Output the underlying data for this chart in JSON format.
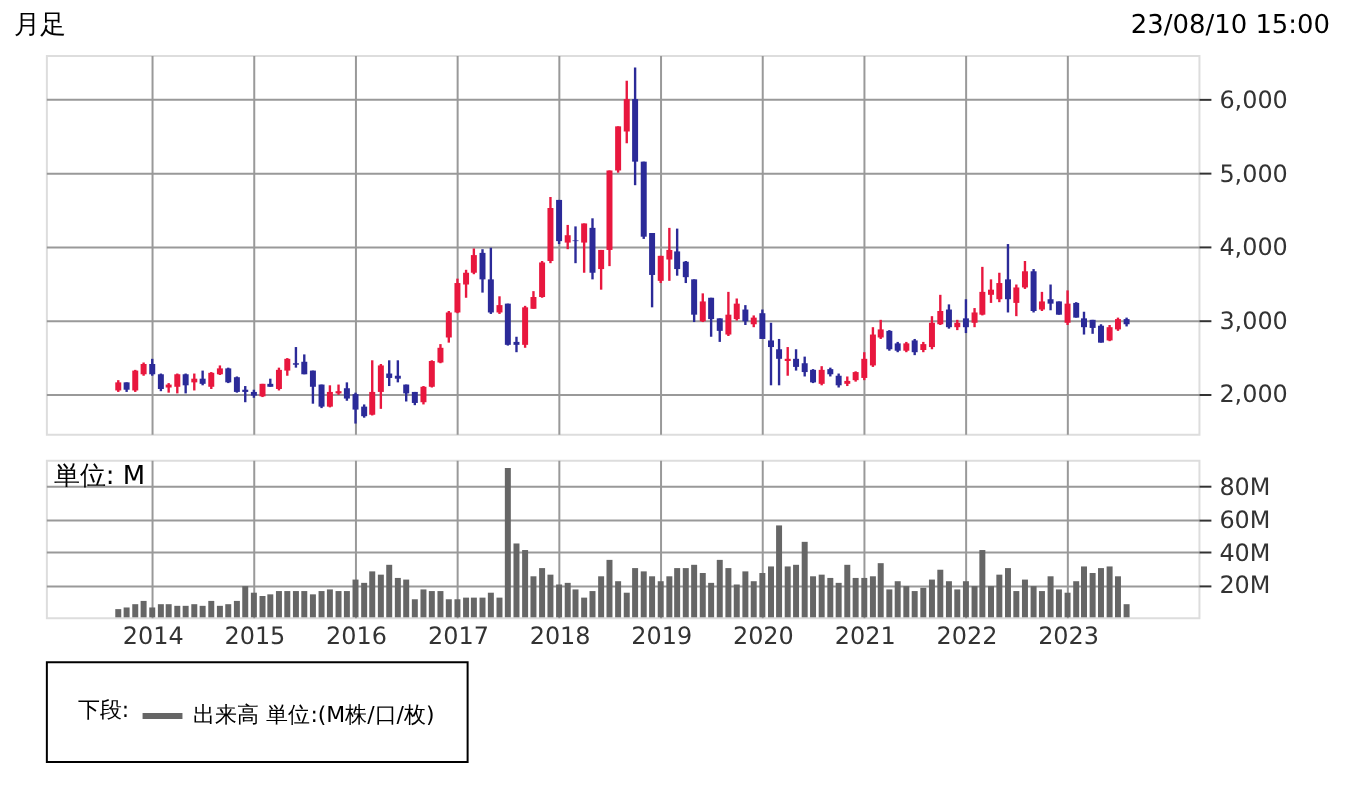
{
  "chart_data": [
    {
      "type": "candlestick",
      "annotations": [
        "月足",
        "23/08/10 15:00"
      ],
      "x": [
        "2013-09",
        "2013-10",
        "2013-11",
        "2013-12",
        "2014-01",
        "2014-02",
        "2014-03",
        "2014-04",
        "2014-05",
        "2014-06",
        "2014-07",
        "2014-08",
        "2014-09",
        "2014-10",
        "2014-11",
        "2014-12",
        "2015-01",
        "2015-02",
        "2015-03",
        "2015-04",
        "2015-05",
        "2015-06",
        "2015-07",
        "2015-08",
        "2015-09",
        "2015-10",
        "2015-11",
        "2015-12",
        "2016-01",
        "2016-02",
        "2016-03",
        "2016-04",
        "2016-05",
        "2016-06",
        "2016-07",
        "2016-08",
        "2016-09",
        "2016-10",
        "2016-11",
        "2016-12",
        "2017-01",
        "2017-02",
        "2017-03",
        "2017-04",
        "2017-05",
        "2017-06",
        "2017-07",
        "2017-08",
        "2017-09",
        "2017-10",
        "2017-11",
        "2017-12",
        "2018-01",
        "2018-02",
        "2018-03",
        "2018-04",
        "2018-05",
        "2018-06",
        "2018-07",
        "2018-08",
        "2018-09",
        "2018-10",
        "2018-11",
        "2018-12",
        "2019-01",
        "2019-02",
        "2019-03",
        "2019-04",
        "2019-05",
        "2019-06",
        "2019-07",
        "2019-08",
        "2019-09",
        "2019-10",
        "2019-11",
        "2019-12",
        "2020-01",
        "2020-02",
        "2020-03",
        "2020-04",
        "2020-05",
        "2020-06",
        "2020-07",
        "2020-08",
        "2020-09",
        "2020-10",
        "2020-11",
        "2020-12",
        "2021-01",
        "2021-02",
        "2021-03",
        "2021-04",
        "2021-05",
        "2021-06",
        "2021-07",
        "2021-08",
        "2021-09",
        "2021-10",
        "2021-11",
        "2021-12",
        "2022-01",
        "2022-02",
        "2022-03",
        "2022-04",
        "2022-05",
        "2022-06",
        "2022-07",
        "2022-08",
        "2022-09",
        "2022-10",
        "2022-11",
        "2022-12",
        "2023-01",
        "2023-02",
        "2023-03",
        "2023-04",
        "2023-05",
        "2023-06",
        "2023-07",
        "2023-08"
      ],
      "ohlc": [
        [
          2040,
          2180,
          2020,
          2150
        ],
        [
          2150,
          2150,
          2020,
          2050
        ],
        [
          2040,
          2320,
          2020,
          2310
        ],
        [
          2260,
          2420,
          2240,
          2400
        ],
        [
          2400,
          2470,
          2240,
          2260
        ],
        [
          2260,
          2270,
          2030,
          2060
        ],
        [
          2080,
          2140,
          2010,
          2120
        ],
        [
          2090,
          2270,
          2000,
          2260
        ],
        [
          2260,
          2270,
          2000,
          2110
        ],
        [
          2150,
          2270,
          2040,
          2200
        ],
        [
          2200,
          2310,
          2110,
          2130
        ],
        [
          2090,
          2290,
          2060,
          2280
        ],
        [
          2260,
          2380,
          2250,
          2340
        ],
        [
          2340,
          2350,
          2140,
          2150
        ],
        [
          2220,
          2230,
          2010,
          2020
        ],
        [
          2050,
          2100,
          1880,
          2020
        ],
        [
          2020,
          2050,
          1940,
          1970
        ],
        [
          1960,
          2130,
          1950,
          2130
        ],
        [
          2130,
          2200,
          2090,
          2090
        ],
        [
          2060,
          2350,
          2040,
          2320
        ],
        [
          2310,
          2480,
          2240,
          2470
        ],
        [
          2410,
          2630,
          2350,
          2390
        ],
        [
          2430,
          2530,
          2260,
          2260
        ],
        [
          2310,
          2310,
          1860,
          2090
        ],
        [
          2120,
          2120,
          1800,
          1820
        ],
        [
          1820,
          2110,
          1810,
          2020
        ],
        [
          2000,
          2120,
          1980,
          2030
        ],
        [
          2070,
          2150,
          1900,
          1930
        ],
        [
          1990,
          2010,
          1590,
          1780
        ],
        [
          1820,
          1850,
          1670,
          1690
        ],
        [
          1710,
          2450,
          1700,
          2020
        ],
        [
          2020,
          2400,
          1790,
          2380
        ],
        [
          2270,
          2450,
          2100,
          2210
        ],
        [
          2240,
          2450,
          2150,
          2200
        ],
        [
          2120,
          2120,
          1890,
          2000
        ],
        [
          2020,
          2020,
          1840,
          1870
        ],
        [
          1880,
          2100,
          1850,
          2090
        ],
        [
          2090,
          2450,
          2080,
          2440
        ],
        [
          2420,
          2670,
          2410,
          2620
        ],
        [
          2760,
          3120,
          2690,
          3100
        ],
        [
          3100,
          3560,
          3090,
          3500
        ],
        [
          3480,
          3680,
          3300,
          3640
        ],
        [
          3640,
          3970,
          3620,
          3880
        ],
        [
          3910,
          3960,
          3370,
          3550
        ],
        [
          3550,
          3980,
          3080,
          3100
        ],
        [
          3100,
          3320,
          3080,
          3200
        ],
        [
          3220,
          3220,
          2650,
          2660
        ],
        [
          2700,
          2770,
          2560,
          2660
        ],
        [
          2660,
          3190,
          2620,
          3170
        ],
        [
          3150,
          3390,
          3150,
          3310
        ],
        [
          3310,
          3800,
          3300,
          3780
        ],
        [
          3800,
          4670,
          3770,
          4520
        ],
        [
          4630,
          4630,
          4030,
          4070
        ],
        [
          4050,
          4290,
          3960,
          4150
        ],
        [
          4080,
          4270,
          3770,
          4070
        ],
        [
          4050,
          4310,
          3640,
          4310
        ],
        [
          4250,
          4380,
          3550,
          3640
        ],
        [
          3690,
          3950,
          3410,
          3950
        ],
        [
          3950,
          5030,
          3730,
          5030
        ],
        [
          5030,
          5630,
          5000,
          5630
        ],
        [
          5560,
          6250,
          5400,
          6000
        ],
        [
          6000,
          6430,
          4830,
          5150
        ],
        [
          5150,
          5150,
          4100,
          4130
        ],
        [
          4180,
          4180,
          3170,
          3610
        ],
        [
          3530,
          3870,
          3500,
          3870
        ],
        [
          3820,
          4250,
          3530,
          3950
        ],
        [
          3930,
          4240,
          3600,
          3690
        ],
        [
          3790,
          3800,
          3500,
          3580
        ],
        [
          3550,
          3550,
          2970,
          3070
        ],
        [
          2980,
          3360,
          2970,
          3250
        ],
        [
          3300,
          3300,
          2770,
          3010
        ],
        [
          3020,
          3020,
          2700,
          2850
        ],
        [
          2800,
          3380,
          2780,
          3070
        ],
        [
          3010,
          3290,
          2990,
          3220
        ],
        [
          3140,
          3200,
          2930,
          2980
        ],
        [
          2940,
          3060,
          2900,
          3030
        ],
        [
          3090,
          3140,
          2740,
          2740
        ],
        [
          2720,
          2960,
          2110,
          2630
        ],
        [
          2600,
          2740,
          2110,
          2470
        ],
        [
          2440,
          2630,
          2240,
          2470
        ],
        [
          2470,
          2600,
          2310,
          2360
        ],
        [
          2410,
          2500,
          2230,
          2290
        ],
        [
          2320,
          2330,
          2140,
          2150
        ],
        [
          2130,
          2370,
          2110,
          2320
        ],
        [
          2330,
          2350,
          2230,
          2260
        ],
        [
          2240,
          2270,
          2080,
          2110
        ],
        [
          2130,
          2230,
          2100,
          2170
        ],
        [
          2180,
          2300,
          2160,
          2290
        ],
        [
          2210,
          2560,
          2180,
          2470
        ],
        [
          2380,
          2900,
          2360,
          2800
        ],
        [
          2760,
          3000,
          2740,
          2870
        ],
        [
          2850,
          2860,
          2580,
          2600
        ],
        [
          2680,
          2700,
          2560,
          2580
        ],
        [
          2580,
          2700,
          2560,
          2680
        ],
        [
          2720,
          2740,
          2520,
          2560
        ],
        [
          2590,
          2700,
          2560,
          2670
        ],
        [
          2630,
          3050,
          2600,
          2960
        ],
        [
          2940,
          3340,
          2930,
          3120
        ],
        [
          3140,
          3210,
          2880,
          2900
        ],
        [
          2900,
          3000,
          2860,
          2960
        ],
        [
          3020,
          3280,
          2820,
          2900
        ],
        [
          2960,
          3160,
          2900,
          3100
        ],
        [
          3070,
          3720,
          3060,
          3380
        ],
        [
          3340,
          3550,
          3230,
          3410
        ],
        [
          3280,
          3640,
          3240,
          3500
        ],
        [
          3550,
          4030,
          3100,
          3280
        ],
        [
          3230,
          3480,
          3050,
          3440
        ],
        [
          3440,
          3800,
          3420,
          3660
        ],
        [
          3660,
          3690,
          3100,
          3120
        ],
        [
          3140,
          3380,
          3120,
          3250
        ],
        [
          3280,
          3480,
          3130,
          3220
        ],
        [
          3250,
          3250,
          3070,
          3070
        ],
        [
          2960,
          3400,
          2930,
          3220
        ],
        [
          3230,
          3240,
          3030,
          3030
        ],
        [
          3020,
          3110,
          2800,
          2900
        ],
        [
          3000,
          3000,
          2810,
          2890
        ],
        [
          2920,
          2940,
          2690,
          2690
        ],
        [
          2720,
          2930,
          2710,
          2900
        ],
        [
          2870,
          3030,
          2850,
          3010
        ],
        [
          3010,
          3030,
          2910,
          2940
        ]
      ],
      "colors": [
        "#e8173e",
        "#2b2a98",
        "#e8173e",
        "#e8173e",
        "#2b2a98",
        "#2b2a98",
        "#e8173e",
        "#e8173e",
        "#2b2a98",
        "#e8173e",
        "#2b2a98",
        "#e8173e",
        "#e8173e",
        "#2b2a98",
        "#2b2a98",
        "#2b2a98",
        "#2b2a98",
        "#e8173e",
        "#2b2a98",
        "#e8173e",
        "#e8173e",
        "#2b2a98",
        "#2b2a98",
        "#2b2a98",
        "#2b2a98",
        "#e8173e",
        "#e8173e",
        "#2b2a98",
        "#2b2a98",
        "#2b2a98",
        "#e8173e",
        "#e8173e",
        "#2b2a98",
        "#2b2a98",
        "#2b2a98",
        "#2b2a98",
        "#e8173e",
        "#e8173e",
        "#e8173e",
        "#e8173e",
        "#e8173e",
        "#e8173e",
        "#e8173e",
        "#2b2a98",
        "#2b2a98",
        "#e8173e",
        "#2b2a98",
        "#2b2a98",
        "#e8173e",
        "#e8173e",
        "#e8173e",
        "#e8173e",
        "#2b2a98",
        "#e8173e",
        "#2b2a98",
        "#e8173e",
        "#2b2a98",
        "#e8173e",
        "#e8173e",
        "#e8173e",
        "#e8173e",
        "#2b2a98",
        "#2b2a98",
        "#2b2a98",
        "#e8173e",
        "#e8173e",
        "#2b2a98",
        "#2b2a98",
        "#2b2a98",
        "#e8173e",
        "#2b2a98",
        "#2b2a98",
        "#e8173e",
        "#e8173e",
        "#2b2a98",
        "#e8173e",
        "#2b2a98",
        "#2b2a98",
        "#2b2a98",
        "#e8173e",
        "#2b2a98",
        "#2b2a98",
        "#2b2a98",
        "#e8173e",
        "#2b2a98",
        "#2b2a98",
        "#e8173e",
        "#e8173e",
        "#e8173e",
        "#e8173e",
        "#e8173e",
        "#2b2a98",
        "#2b2a98",
        "#e8173e",
        "#2b2a98",
        "#e8173e",
        "#e8173e",
        "#e8173e",
        "#2b2a98",
        "#e8173e",
        "#2b2a98",
        "#e8173e",
        "#e8173e",
        "#e8173e",
        "#e8173e",
        "#2b2a98",
        "#e8173e",
        "#e8173e",
        "#2b2a98",
        "#e8173e",
        "#2b2a98",
        "#2b2a98",
        "#e8173e",
        "#2b2a98",
        "#2b2a98",
        "#2b2a98",
        "#2b2a98",
        "#e8173e",
        "#e8173e",
        "#2b2a98"
      ],
      "xlim": [
        "2012-12-15",
        "2024-04-15"
      ],
      "xticks": [
        "2014",
        "2015",
        "2016",
        "2017",
        "2018",
        "2019",
        "2020",
        "2021",
        "2022",
        "2023"
      ],
      "ylim": [
        1450,
        6600
      ],
      "yticks": [
        {
          "value": 2000,
          "label": "2,000"
        },
        {
          "value": 3000,
          "label": "3,000"
        },
        {
          "value": 4000,
          "label": "4,000"
        },
        {
          "value": 5000,
          "label": "5,000"
        },
        {
          "value": 6000,
          "label": "6,000"
        }
      ],
      "tick_labels": "y",
      "grid": true
    },
    {
      "type": "bar",
      "annotations": [
        "単位: M"
      ],
      "x": [
        "2013-09",
        "2013-10",
        "2013-11",
        "2013-12",
        "2014-01",
        "2014-02",
        "2014-03",
        "2014-04",
        "2014-05",
        "2014-06",
        "2014-07",
        "2014-08",
        "2014-09",
        "2014-10",
        "2014-11",
        "2014-12",
        "2015-01",
        "2015-02",
        "2015-03",
        "2015-04",
        "2015-05",
        "2015-06",
        "2015-07",
        "2015-08",
        "2015-09",
        "2015-10",
        "2015-11",
        "2015-12",
        "2016-01",
        "2016-02",
        "2016-03",
        "2016-04",
        "2016-05",
        "2016-06",
        "2016-07",
        "2016-08",
        "2016-09",
        "2016-10",
        "2016-11",
        "2016-12",
        "2017-01",
        "2017-02",
        "2017-03",
        "2017-04",
        "2017-05",
        "2017-06",
        "2017-07",
        "2017-08",
        "2017-09",
        "2017-10",
        "2017-11",
        "2017-12",
        "2018-01",
        "2018-02",
        "2018-03",
        "2018-04",
        "2018-05",
        "2018-06",
        "2018-07",
        "2018-08",
        "2018-09",
        "2018-10",
        "2018-11",
        "2018-12",
        "2019-01",
        "2019-02",
        "2019-03",
        "2019-04",
        "2019-05",
        "2019-06",
        "2019-07",
        "2019-08",
        "2019-09",
        "2019-10",
        "2019-11",
        "2019-12",
        "2020-01",
        "2020-02",
        "2020-03",
        "2020-04",
        "2020-05",
        "2020-06",
        "2020-07",
        "2020-08",
        "2020-09",
        "2020-10",
        "2020-11",
        "2020-12",
        "2021-01",
        "2021-02",
        "2021-03",
        "2021-04",
        "2021-05",
        "2021-06",
        "2021-07",
        "2021-08",
        "2021-09",
        "2021-10",
        "2021-11",
        "2021-12",
        "2022-01",
        "2022-02",
        "2022-03",
        "2022-04",
        "2022-05",
        "2022-06",
        "2022-07",
        "2022-08",
        "2022-09",
        "2022-10",
        "2022-11",
        "2022-12",
        "2023-01",
        "2023-02",
        "2023-03",
        "2023-04",
        "2023-05",
        "2023-06",
        "2023-07",
        "2023-08"
      ],
      "series": [
        {
          "name": "出来高 単位:(M株/口/枚)",
          "color": "#666666",
          "values": [
            5,
            6,
            8,
            10,
            6,
            8,
            8,
            7,
            7,
            8,
            7,
            10,
            7,
            8,
            10,
            19,
            15,
            13,
            14,
            16,
            16,
            16,
            16,
            14,
            16,
            17,
            16,
            16,
            23,
            21,
            28,
            26,
            32,
            24,
            23,
            11,
            17,
            16,
            16,
            11,
            11,
            12,
            12,
            12,
            15,
            12,
            91,
            45,
            41,
            25,
            30,
            26,
            20,
            21,
            17,
            12,
            16,
            25,
            35,
            22,
            15,
            30,
            28,
            25,
            22,
            25,
            30,
            30,
            32,
            27,
            21,
            35,
            30,
            20,
            28,
            22,
            27,
            31,
            56,
            31,
            32,
            46,
            25,
            26,
            24,
            21,
            32,
            24,
            24,
            25,
            33,
            17,
            22,
            19,
            16,
            18,
            23,
            29,
            22,
            17,
            22,
            19,
            41,
            19,
            26,
            30,
            16,
            23,
            19,
            16,
            25,
            17,
            15,
            22,
            31,
            27,
            30,
            31,
            25,
            8
          ]
        }
      ],
      "legend_title": "下段:",
      "legend": "bottom",
      "xlim": [
        "2012-12-15",
        "2024-04-15"
      ],
      "xticks": [
        "2014",
        "2015",
        "2016",
        "2017",
        "2018",
        "2019",
        "2020",
        "2021",
        "2022",
        "2023"
      ],
      "ylim": [
        0,
        96
      ],
      "yticks": [
        {
          "value": 20,
          "label": "20M"
        },
        {
          "value": 40,
          "label": "40M"
        },
        {
          "value": 60,
          "label": "60M"
        },
        {
          "value": 80,
          "label": "80M"
        }
      ],
      "grid": true
    }
  ]
}
